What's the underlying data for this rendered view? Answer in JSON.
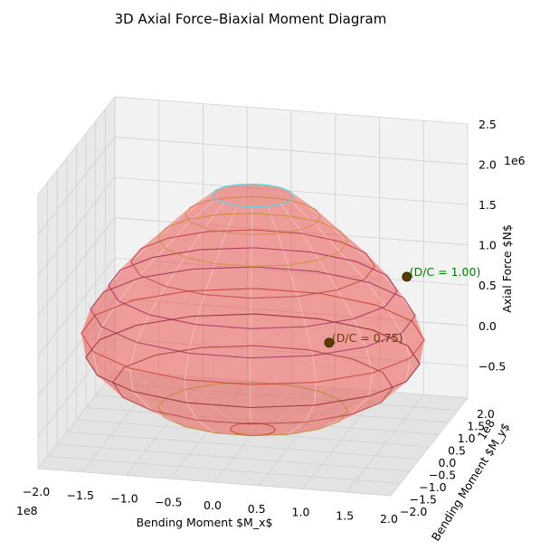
{
  "chart_data": {
    "type": "surface3d",
    "title": "3D Axial Force–Biaxial Moment Diagram",
    "xlabel": "Bending Moment $M_x$",
    "ylabel": "Bending Moment $M_y$",
    "zlabel": "Axial Force $N$",
    "x_offset_text": "1e8",
    "y_offset_text": "1e8",
    "z_offset_text": "1e6",
    "xlim": [
      -2.0,
      2.0
    ],
    "ylim": [
      -2.0,
      2.0
    ],
    "zlim": [
      -0.9,
      2.5
    ],
    "x_ticks": [
      "−2.0",
      "−1.5",
      "−1.0",
      "−0.5",
      "0.0",
      "0.5",
      "1.0",
      "1.5",
      "2.0"
    ],
    "y_ticks": [
      "−2.0",
      "−1.5",
      "−1.0",
      "−0.5",
      "0.0",
      "0.5",
      "1.0",
      "1.5",
      "2.0"
    ],
    "z_ticks": [
      "−0.5",
      "0.0",
      "0.5",
      "1.0",
      "1.5",
      "2.0",
      "2.5"
    ],
    "grid": true,
    "surface_color": "#e8554e",
    "surface": {
      "description": "Closed interaction surface; each contour is an N-level ring of (Mx, My) capacity points",
      "contours": [
        {
          "N": -0.85,
          "radius": 0.25
        },
        {
          "N": -0.6,
          "radius": 1.05
        },
        {
          "N": -0.3,
          "radius": 1.55
        },
        {
          "N": 0.0,
          "radius": 1.85
        },
        {
          "N": 0.3,
          "radius": 1.9
        },
        {
          "N": 0.6,
          "radius": 1.8
        },
        {
          "N": 0.9,
          "radius": 1.6
        },
        {
          "N": 1.2,
          "radius": 1.35
        },
        {
          "N": 1.5,
          "radius": 1.05
        },
        {
          "N": 1.8,
          "radius": 0.75
        },
        {
          "N": 2.05,
          "radius": 0.45
        }
      ]
    },
    "points": [
      {
        "label": "(D/C = 1.00)",
        "mx": 1.55,
        "my": 0.9,
        "n": 0.9,
        "color": "#008000"
      },
      {
        "label": "(D/C = 0.75)",
        "mx": 0.8,
        "my": 0.3,
        "n": 0.2,
        "color": "#6b3a00"
      }
    ]
  },
  "colors": {
    "pane": "#f2f2f2",
    "grid": "#d0d0d0",
    "point_marker": "#5c3b00",
    "top_cap": "#6fd0d8"
  }
}
